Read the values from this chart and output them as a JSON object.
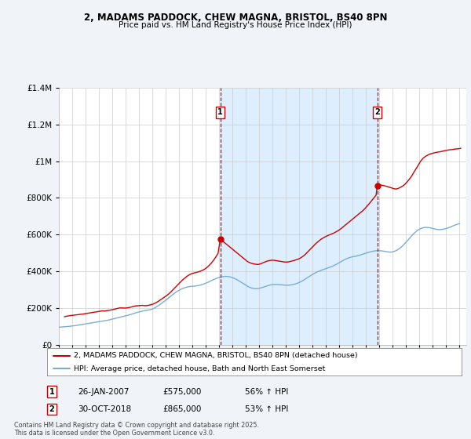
{
  "title1": "2, MADAMS PADDOCK, CHEW MAGNA, BRISTOL, BS40 8PN",
  "title2": "Price paid vs. HM Land Registry's House Price Index (HPI)",
  "legend_label1": "2, MADAMS PADDOCK, CHEW MAGNA, BRISTOL, BS40 8PN (detached house)",
  "legend_label2": "HPI: Average price, detached house, Bath and North East Somerset",
  "footer": "Contains HM Land Registry data © Crown copyright and database right 2025.\nThis data is licensed under the Open Government Licence v3.0.",
  "annotation1": {
    "num": "1",
    "date": "26-JAN-2007",
    "price": "£575,000",
    "pct": "56% ↑ HPI"
  },
  "annotation2": {
    "num": "2",
    "date": "30-OCT-2018",
    "price": "£865,000",
    "pct": "53% ↑ HPI"
  },
  "line_color_red": "#cc0000",
  "line_color_blue": "#7aadd4",
  "vline_color": "#cc0000",
  "background_color": "#f0f4f8",
  "plot_bg": "#ffffff",
  "shade_color": "#ddeeff",
  "ylim": [
    0,
    1400000
  ],
  "yticks": [
    0,
    200000,
    400000,
    600000,
    800000,
    1000000,
    1200000,
    1400000
  ],
  "ytick_labels": [
    "£0",
    "£200K",
    "£400K",
    "£600K",
    "£800K",
    "£1M",
    "£1.2M",
    "£1.4M"
  ],
  "vline1_year": 2007.08,
  "vline2_year": 2018.83,
  "marker1_price": 575000,
  "marker2_price": 865000,
  "red_data_years": [
    1995.42,
    1995.58,
    1995.75,
    1995.92,
    1996.08,
    1996.25,
    1996.42,
    1996.58,
    1996.75,
    1996.92,
    1997.08,
    1997.25,
    1997.42,
    1997.58,
    1997.75,
    1997.92,
    1998.08,
    1998.25,
    1998.42,
    1998.58,
    1998.75,
    1998.92,
    1999.08,
    1999.25,
    1999.42,
    1999.58,
    1999.75,
    1999.92,
    2000.08,
    2000.25,
    2000.42,
    2000.58,
    2000.75,
    2000.92,
    2001.08,
    2001.25,
    2001.42,
    2001.58,
    2001.75,
    2001.92,
    2002.08,
    2002.25,
    2002.42,
    2002.58,
    2002.75,
    2002.92,
    2003.08,
    2003.25,
    2003.42,
    2003.58,
    2003.75,
    2003.92,
    2004.08,
    2004.25,
    2004.42,
    2004.58,
    2004.75,
    2004.92,
    2005.08,
    2005.25,
    2005.42,
    2005.58,
    2005.75,
    2005.92,
    2006.08,
    2006.25,
    2006.42,
    2006.58,
    2006.75,
    2006.92,
    2007.08,
    2007.25,
    2007.42,
    2007.58,
    2007.75,
    2007.92,
    2008.08,
    2008.25,
    2008.42,
    2008.58,
    2008.75,
    2008.92,
    2009.08,
    2009.25,
    2009.42,
    2009.58,
    2009.75,
    2009.92,
    2010.08,
    2010.25,
    2010.42,
    2010.58,
    2010.75,
    2010.92,
    2011.08,
    2011.25,
    2011.42,
    2011.58,
    2011.75,
    2011.92,
    2012.08,
    2012.25,
    2012.42,
    2012.58,
    2012.75,
    2012.92,
    2013.08,
    2013.25,
    2013.42,
    2013.58,
    2013.75,
    2013.92,
    2014.08,
    2014.25,
    2014.42,
    2014.58,
    2014.75,
    2014.92,
    2015.08,
    2015.25,
    2015.42,
    2015.58,
    2015.75,
    2015.92,
    2016.08,
    2016.25,
    2016.42,
    2016.58,
    2016.75,
    2016.92,
    2017.08,
    2017.25,
    2017.42,
    2017.58,
    2017.75,
    2017.92,
    2018.08,
    2018.25,
    2018.42,
    2018.58,
    2018.75,
    2018.83,
    2019.08,
    2019.25,
    2019.42,
    2019.58,
    2019.75,
    2019.92,
    2020.08,
    2020.25,
    2020.42,
    2020.58,
    2020.75,
    2020.92,
    2021.08,
    2021.25,
    2021.42,
    2021.58,
    2021.75,
    2021.92,
    2022.08,
    2022.25,
    2022.42,
    2022.58,
    2022.75,
    2022.92,
    2023.08,
    2023.25,
    2023.42,
    2023.58,
    2023.75,
    2023.92,
    2024.08,
    2024.25,
    2024.42,
    2024.58,
    2024.75,
    2024.92,
    2025.08
  ],
  "red_data_vals": [
    152000,
    155000,
    157000,
    159000,
    160000,
    162000,
    163000,
    165000,
    166000,
    168000,
    170000,
    172000,
    174000,
    176000,
    178000,
    180000,
    182000,
    184000,
    183000,
    185000,
    187000,
    189000,
    192000,
    195000,
    198000,
    200000,
    200000,
    199000,
    200000,
    202000,
    205000,
    208000,
    211000,
    212000,
    213000,
    214000,
    212000,
    213000,
    215000,
    218000,
    222000,
    228000,
    235000,
    243000,
    252000,
    260000,
    268000,
    278000,
    290000,
    302000,
    315000,
    328000,
    340000,
    352000,
    362000,
    372000,
    380000,
    386000,
    390000,
    393000,
    396000,
    400000,
    405000,
    412000,
    420000,
    432000,
    445000,
    460000,
    478000,
    498000,
    575000,
    565000,
    555000,
    545000,
    535000,
    525000,
    515000,
    505000,
    495000,
    485000,
    475000,
    465000,
    455000,
    448000,
    443000,
    440000,
    438000,
    437000,
    440000,
    445000,
    450000,
    455000,
    458000,
    460000,
    460000,
    458000,
    456000,
    454000,
    452000,
    450000,
    450000,
    452000,
    455000,
    458000,
    462000,
    466000,
    472000,
    480000,
    490000,
    502000,
    515000,
    528000,
    540000,
    552000,
    562000,
    572000,
    580000,
    587000,
    593000,
    598000,
    603000,
    608000,
    615000,
    622000,
    630000,
    640000,
    650000,
    660000,
    670000,
    680000,
    690000,
    700000,
    710000,
    720000,
    730000,
    742000,
    756000,
    770000,
    785000,
    800000,
    815000,
    865000,
    870000,
    868000,
    865000,
    862000,
    858000,
    854000,
    850000,
    848000,
    852000,
    858000,
    865000,
    875000,
    888000,
    903000,
    920000,
    940000,
    960000,
    980000,
    1000000,
    1015000,
    1025000,
    1032000,
    1038000,
    1042000,
    1045000,
    1048000,
    1050000,
    1052000,
    1055000,
    1058000,
    1060000,
    1062000,
    1063000,
    1065000,
    1067000,
    1068000,
    1070000
  ],
  "blue_data_years": [
    1995.0,
    1995.17,
    1995.33,
    1995.5,
    1995.67,
    1995.83,
    1996.0,
    1996.17,
    1996.33,
    1996.5,
    1996.67,
    1996.83,
    1997.0,
    1997.17,
    1997.33,
    1997.5,
    1997.67,
    1997.83,
    1998.0,
    1998.17,
    1998.33,
    1998.5,
    1998.67,
    1998.83,
    1999.0,
    1999.17,
    1999.33,
    1999.5,
    1999.67,
    1999.83,
    2000.0,
    2000.17,
    2000.33,
    2000.5,
    2000.67,
    2000.83,
    2001.0,
    2001.17,
    2001.33,
    2001.5,
    2001.67,
    2001.83,
    2002.0,
    2002.17,
    2002.33,
    2002.5,
    2002.67,
    2002.83,
    2003.0,
    2003.17,
    2003.33,
    2003.5,
    2003.67,
    2003.83,
    2004.0,
    2004.17,
    2004.33,
    2004.5,
    2004.67,
    2004.83,
    2005.0,
    2005.17,
    2005.33,
    2005.5,
    2005.67,
    2005.83,
    2006.0,
    2006.17,
    2006.33,
    2006.5,
    2006.67,
    2006.83,
    2007.0,
    2007.17,
    2007.33,
    2007.5,
    2007.67,
    2007.83,
    2008.0,
    2008.17,
    2008.33,
    2008.5,
    2008.67,
    2008.83,
    2009.0,
    2009.17,
    2009.33,
    2009.5,
    2009.67,
    2009.83,
    2010.0,
    2010.17,
    2010.33,
    2010.5,
    2010.67,
    2010.83,
    2011.0,
    2011.17,
    2011.33,
    2011.5,
    2011.67,
    2011.83,
    2012.0,
    2012.17,
    2012.33,
    2012.5,
    2012.67,
    2012.83,
    2013.0,
    2013.17,
    2013.33,
    2013.5,
    2013.67,
    2013.83,
    2014.0,
    2014.17,
    2014.33,
    2014.5,
    2014.67,
    2014.83,
    2015.0,
    2015.17,
    2015.33,
    2015.5,
    2015.67,
    2015.83,
    2016.0,
    2016.17,
    2016.33,
    2016.5,
    2016.67,
    2016.83,
    2017.0,
    2017.17,
    2017.33,
    2017.5,
    2017.67,
    2017.83,
    2018.0,
    2018.17,
    2018.33,
    2018.5,
    2018.67,
    2018.83,
    2019.0,
    2019.17,
    2019.33,
    2019.5,
    2019.67,
    2019.83,
    2020.0,
    2020.17,
    2020.33,
    2020.5,
    2020.67,
    2020.83,
    2021.0,
    2021.17,
    2021.33,
    2021.5,
    2021.67,
    2021.83,
    2022.0,
    2022.17,
    2022.33,
    2022.5,
    2022.67,
    2022.83,
    2023.0,
    2023.17,
    2023.33,
    2023.5,
    2023.67,
    2023.83,
    2024.0,
    2024.17,
    2024.33,
    2024.5,
    2024.67,
    2024.83,
    2025.0
  ],
  "blue_data_vals": [
    95000,
    96000,
    97000,
    98000,
    99000,
    100000,
    102000,
    103000,
    105000,
    107000,
    109000,
    111000,
    113000,
    115000,
    117000,
    119000,
    121000,
    123000,
    125000,
    127000,
    129000,
    131000,
    133000,
    136000,
    139000,
    142000,
    145000,
    148000,
    151000,
    154000,
    157000,
    160000,
    163000,
    167000,
    171000,
    175000,
    178000,
    181000,
    184000,
    186000,
    188000,
    190000,
    194000,
    200000,
    207000,
    215000,
    224000,
    233000,
    242000,
    252000,
    262000,
    272000,
    281000,
    289000,
    296000,
    303000,
    308000,
    312000,
    315000,
    317000,
    318000,
    319000,
    321000,
    323000,
    326000,
    330000,
    335000,
    340000,
    346000,
    352000,
    357000,
    362000,
    366000,
    369000,
    371000,
    372000,
    371000,
    369000,
    365000,
    360000,
    354000,
    347000,
    339000,
    331000,
    323000,
    316000,
    311000,
    307000,
    305000,
    305000,
    307000,
    310000,
    314000,
    318000,
    322000,
    325000,
    327000,
    328000,
    328000,
    327000,
    326000,
    325000,
    324000,
    324000,
    325000,
    327000,
    330000,
    334000,
    339000,
    345000,
    352000,
    360000,
    368000,
    376000,
    383000,
    390000,
    396000,
    401000,
    406000,
    410000,
    414000,
    418000,
    423000,
    428000,
    434000,
    440000,
    447000,
    454000,
    461000,
    467000,
    472000,
    476000,
    479000,
    481000,
    484000,
    487000,
    491000,
    495000,
    499000,
    503000,
    506000,
    509000,
    511000,
    512000,
    512000,
    511000,
    509000,
    507000,
    505000,
    504000,
    506000,
    510000,
    516000,
    524000,
    534000,
    546000,
    559000,
    573000,
    587000,
    600000,
    612000,
    622000,
    630000,
    635000,
    638000,
    639000,
    638000,
    636000,
    633000,
    630000,
    628000,
    627000,
    628000,
    630000,
    633000,
    637000,
    642000,
    647000,
    652000,
    656000,
    660000
  ]
}
